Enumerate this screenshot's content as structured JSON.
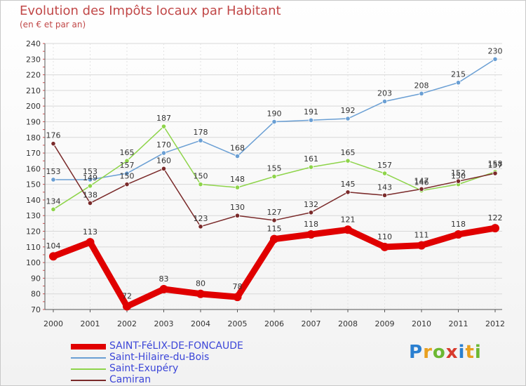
{
  "title": "Evolution des Impôts locaux par Habitant",
  "subtitle": "(en € et par an)",
  "logo": {
    "text": "Proxiti",
    "letters": [
      "P",
      "r",
      "o",
      "x",
      "i",
      "t",
      "i"
    ],
    "colors": [
      "#2a7fd0",
      "#e8a020",
      "#6cb832",
      "#d83a2c",
      "#2a7fd0",
      "#e8a020",
      "#6cb832"
    ]
  },
  "chart_data": {
    "type": "line",
    "title": "Evolution des Impôts locaux par Habitant",
    "subtitle": "(en € et par an)",
    "xlabel": "",
    "ylabel": "",
    "x": [
      "2000",
      "2001",
      "2002",
      "2003",
      "2004",
      "2005",
      "2006",
      "2007",
      "2008",
      "2009",
      "2010",
      "2011",
      "2012"
    ],
    "ylim": [
      70,
      240
    ],
    "yticks": [
      70,
      80,
      90,
      100,
      110,
      120,
      130,
      140,
      150,
      160,
      170,
      180,
      190,
      200,
      210,
      220,
      230,
      240
    ],
    "grid": true,
    "legend_position": "bottom-left",
    "series": [
      {
        "name": "SAINT-FéLIX-DE-FONCAUDE",
        "color": "#e00000",
        "emphasis": true,
        "values": [
          104,
          113,
          72,
          83,
          80,
          78,
          115,
          118,
          121,
          110,
          111,
          118,
          122
        ]
      },
      {
        "name": "Saint-Hilaire-du-Bois",
        "color": "#6a9fd4",
        "emphasis": false,
        "values": [
          153,
          153,
          157,
          170,
          178,
          168,
          190,
          191,
          192,
          203,
          208,
          215,
          230
        ]
      },
      {
        "name": "Saint-Exupéry",
        "color": "#8ed44a",
        "emphasis": false,
        "values": [
          134,
          149,
          165,
          187,
          150,
          148,
          155,
          161,
          165,
          157,
          146,
          150,
          158
        ]
      },
      {
        "name": "Camiran",
        "color": "#7a2a2a",
        "emphasis": false,
        "values": [
          176,
          138,
          150,
          160,
          123,
          130,
          127,
          132,
          145,
          143,
          147,
          152,
          157
        ]
      }
    ]
  }
}
